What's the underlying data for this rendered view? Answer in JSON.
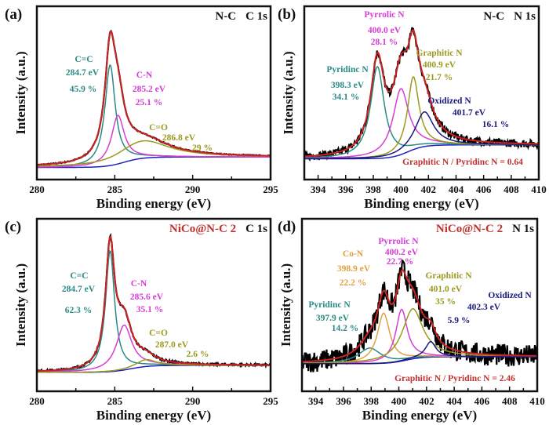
{
  "chart_data": [
    {
      "type": "line",
      "panel": "(a)",
      "sample": "N-C",
      "region": "C 1s",
      "sample_color": "#111111",
      "xlabel": "Binding energy (eV)",
      "ylabel": "Intensity (a.u.)",
      "xlim": [
        280,
        295
      ],
      "xticks": [
        280,
        285,
        290,
        295
      ],
      "ylim": [
        0,
        1
      ],
      "background": {
        "low": 0.07,
        "high": 0.13,
        "center": 285.6
      },
      "components": [
        {
          "name": "C=C",
          "energy": "284.7 eV",
          "percent": "45.9 %",
          "center": 284.7,
          "amplitude": 0.58,
          "fwhm": 0.8,
          "color": "#2a8a86"
        },
        {
          "name": "C-N",
          "energy": "285.2 eV",
          "percent": "25.1 %",
          "center": 285.2,
          "amplitude": 0.28,
          "fwhm": 1.0,
          "color": "#d63cd6"
        },
        {
          "name": "C=O",
          "energy": "286.8 eV",
          "percent": "29 %",
          "center": 286.8,
          "amplitude": 0.1,
          "fwhm": 4.0,
          "color": "#9a9a1e"
        }
      ],
      "ratio_note": ""
    },
    {
      "type": "line",
      "panel": "(b)",
      "sample": "N-C",
      "region": "N 1s",
      "sample_color": "#111111",
      "xlabel": "Binding energy (eV)",
      "ylabel": "Intensity (a.u.)",
      "xlim": [
        393,
        410
      ],
      "xticks": [
        394,
        396,
        398,
        400,
        402,
        404,
        406,
        408,
        410
      ],
      "ylim": [
        0,
        1
      ],
      "background": {
        "low": 0.12,
        "high": 0.2,
        "center": 400.5
      },
      "components": [
        {
          "name": "Pyridinc N",
          "energy": "398.3 eV",
          "percent": "34.1 %",
          "center": 398.3,
          "amplitude": 0.53,
          "fwhm": 1.2,
          "color": "#2a8a86"
        },
        {
          "name": "Pyrrolic N",
          "energy": "400.0 eV",
          "percent": "28.1 %",
          "center": 400.0,
          "amplitude": 0.38,
          "fwhm": 1.4,
          "color": "#d63cd6"
        },
        {
          "name": "Graphitic N",
          "energy": "400.9 eV",
          "percent": "21.7 %",
          "center": 400.9,
          "amplitude": 0.42,
          "fwhm": 1.0,
          "color": "#9a9a1e"
        },
        {
          "name": "Oxidized N",
          "energy": "401.7 eV",
          "percent": "16.1 %",
          "center": 401.7,
          "amplitude": 0.2,
          "fwhm": 1.6,
          "color": "#1a1a7a"
        }
      ],
      "ratio_note": "Graphitic N / Pyridinc N = 0.64"
    },
    {
      "type": "line",
      "panel": "(c)",
      "sample": "NiCo@N-C 2",
      "region": "C 1s",
      "sample_color": "#c0302f",
      "xlabel": "Binding energy (eV)",
      "ylabel": "Intensity (a.u.)",
      "xlim": [
        280,
        295
      ],
      "xticks": [
        280,
        285,
        290,
        295
      ],
      "ylim": [
        0,
        1
      ],
      "background": {
        "low": 0.11,
        "high": 0.15,
        "center": 286.0
      },
      "components": [
        {
          "name": "C=C",
          "energy": "284.7 eV",
          "percent": "62.3 %",
          "center": 284.7,
          "amplitude": 0.7,
          "fwhm": 0.7,
          "color": "#2a8a86"
        },
        {
          "name": "C-N",
          "energy": "285.6 eV",
          "percent": "35.1 %",
          "center": 285.6,
          "amplitude": 0.26,
          "fwhm": 1.2,
          "color": "#d63cd6"
        },
        {
          "name": "C=O",
          "energy": "287.0 eV",
          "percent": "2.6 %",
          "center": 287.0,
          "amplitude": 0.04,
          "fwhm": 1.5,
          "color": "#9a9a1e"
        }
      ],
      "ratio_note": ""
    },
    {
      "type": "line",
      "panel": "(d)",
      "sample": "NiCo@N-C 2",
      "region": "N 1s",
      "sample_color": "#c0302f",
      "xlabel": "Binding energy (eV)",
      "ylabel": "Intensity (a.u.)",
      "xlim": [
        393,
        410
      ],
      "xticks": [
        394,
        396,
        398,
        400,
        402,
        404,
        406,
        408,
        410
      ],
      "ylim": [
        0,
        1
      ],
      "background": {
        "low": 0.16,
        "high": 0.2,
        "center": 400.5
      },
      "components": [
        {
          "name": "Pyridinc N",
          "energy": "397.9 eV",
          "percent": "14.2 %",
          "center": 397.9,
          "amplitude": 0.09,
          "fwhm": 2.0,
          "color": "#2a8a86"
        },
        {
          "name": "Co-N",
          "energy": "398.9 eV",
          "percent": "22.2 %",
          "center": 398.9,
          "amplitude": 0.29,
          "fwhm": 1.1,
          "color": "#e0a040"
        },
        {
          "name": "Pyrrolic N",
          "energy": "400.2 eV",
          "percent": "22.7 %",
          "center": 400.2,
          "amplitude": 0.3,
          "fwhm": 1.0,
          "color": "#d63cd6"
        },
        {
          "name": "Graphitic N",
          "energy": "401.0 eV",
          "percent": "35 %",
          "center": 401.0,
          "amplitude": 0.29,
          "fwhm": 1.8,
          "color": "#9a9a1e"
        },
        {
          "name": "Oxidized N",
          "energy": "402.3 eV",
          "percent": "5.9 %",
          "center": 402.3,
          "amplitude": 0.09,
          "fwhm": 0.9,
          "color": "#1a1a7a"
        }
      ],
      "ratio_note": "Graphitic N / Pyridinc N = 2.46"
    }
  ],
  "colors": {
    "envelope": "#cc2222",
    "experimental": "#000000",
    "background": "#2020c0",
    "ratio_text": "#c0302f"
  }
}
